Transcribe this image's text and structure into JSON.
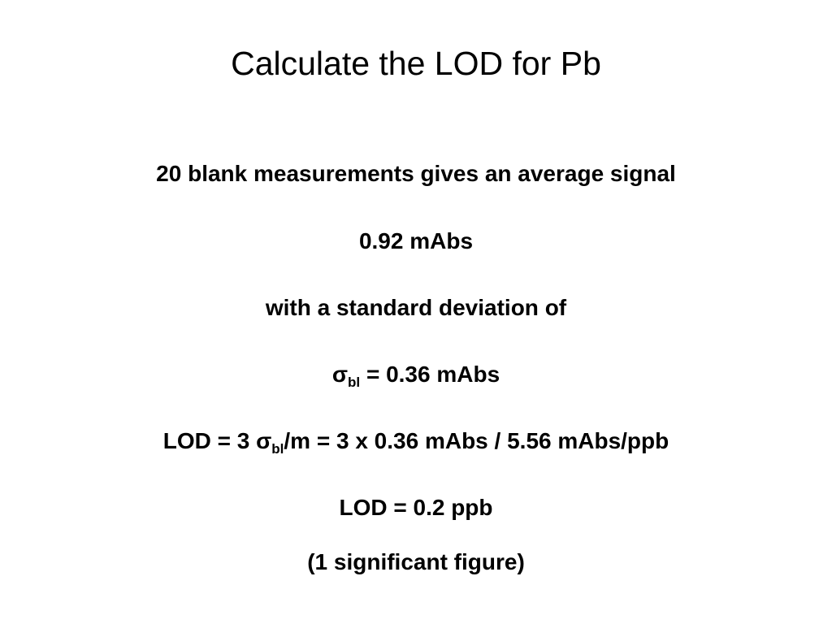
{
  "title": "Calculate the LOD for Pb",
  "lines": [
    "20 blank measurements gives an average signal",
    "0.92 mAbs",
    "with a standard deviation of",
    {
      "pre": "σ",
      "sub": "bl",
      "post": "= 0.36 mAbs"
    },
    {
      "pre": "LOD = 3 σ",
      "sub": "bl",
      "post": "/m = 3 x 0.36 mAbs / 5.56 mAbs/ppb"
    },
    "LOD = 0.2 ppb",
    "(1 significant figure)"
  ]
}
